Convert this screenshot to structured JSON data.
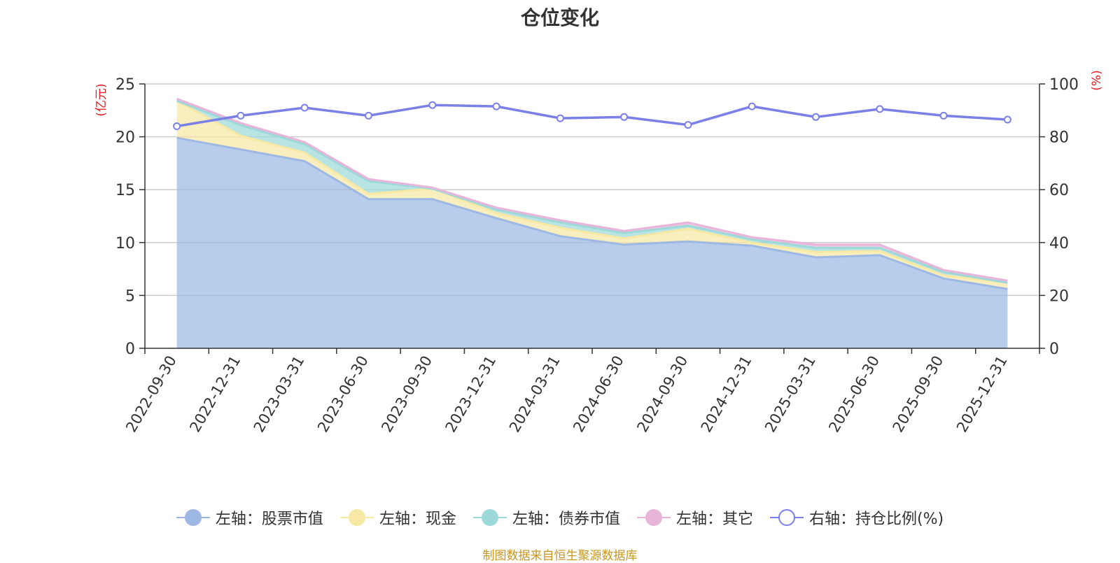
{
  "chart_data": {
    "type": "area",
    "title": "仓位变化",
    "categories": [
      "2022-09-30",
      "2022-12-31",
      "2023-03-31",
      "2023-06-30",
      "2023-09-30",
      "2023-12-31",
      "2024-03-31",
      "2024-06-30",
      "2024-09-30",
      "2024-12-31",
      "2025-03-31",
      "2025-06-30",
      "2025-09-30",
      "2025-12-31"
    ],
    "left_axis": {
      "label": "(亿元)",
      "min": 0,
      "max": 25,
      "ticks": [
        0,
        5,
        10,
        15,
        20,
        25
      ]
    },
    "right_axis": {
      "label": "(%)",
      "min": 0,
      "max": 100,
      "ticks": [
        0,
        20,
        40,
        60,
        80,
        100
      ]
    },
    "series": [
      {
        "name": "左轴：股票市值",
        "axis": "left",
        "stack": "total",
        "color": "#9db9e3",
        "values": [
          19.9,
          18.8,
          17.7,
          14.1,
          14.1,
          12.3,
          10.6,
          9.8,
          10.1,
          9.7,
          8.6,
          8.8,
          6.6,
          5.6
        ]
      },
      {
        "name": "左轴：现金",
        "axis": "left",
        "stack": "total",
        "color": "#f7e8a4",
        "values": [
          3.5,
          1.3,
          0.8,
          0.5,
          1.0,
          0.5,
          0.8,
          0.6,
          1.2,
          0.3,
          0.5,
          0.4,
          0.3,
          0.6
        ]
      },
      {
        "name": "左轴：债券市值",
        "axis": "left",
        "stack": "total",
        "color": "#9ed9d9",
        "values": [
          0.0,
          1.0,
          0.8,
          1.2,
          0.0,
          0.3,
          0.5,
          0.5,
          0.3,
          0.3,
          0.4,
          0.3,
          0.3,
          0.0
        ]
      },
      {
        "name": "左轴：其它",
        "axis": "left",
        "stack": "total",
        "color": "#e8b4d9",
        "values": [
          0.2,
          0.2,
          0.2,
          0.2,
          0.1,
          0.2,
          0.2,
          0.2,
          0.3,
          0.2,
          0.3,
          0.3,
          0.2,
          0.2
        ]
      },
      {
        "name": "右轴：持仓比例(%)",
        "axis": "right",
        "type": "line",
        "color": "#7b7fe8",
        "values": [
          84.0,
          88.0,
          91.0,
          88.0,
          92.0,
          91.5,
          87.0,
          87.5,
          84.5,
          91.5,
          87.5,
          90.5,
          88.0,
          86.5
        ]
      }
    ],
    "source": "制图数据来自恒生聚源数据库"
  }
}
